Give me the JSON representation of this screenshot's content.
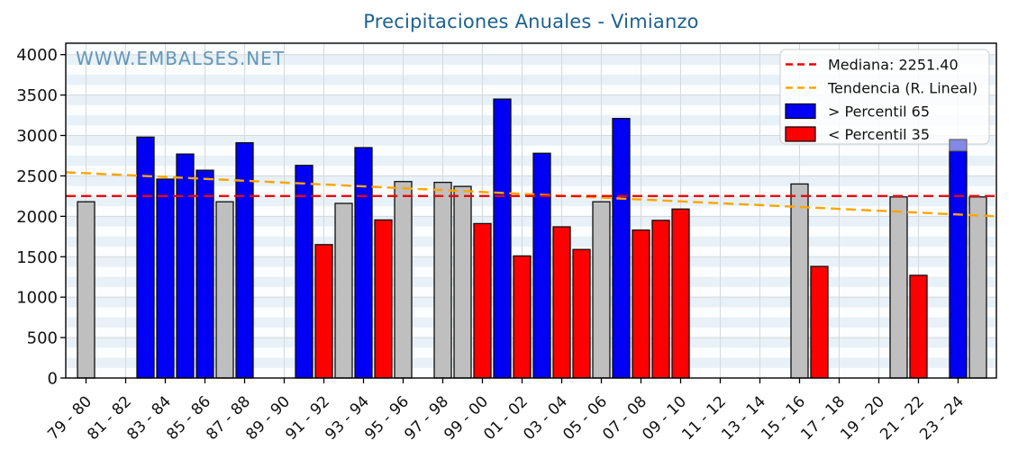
{
  "page": {
    "title": "Precipitaciones Anuales - Vimianzo",
    "watermark": "WWW.EMBALSES.NET"
  },
  "colors": {
    "title": "#1d6191",
    "watermark": "#4f86ac",
    "plot_bg": "#fbfdfe",
    "stripe": "#e8f1f7",
    "grid": "#d3dadd",
    "axis": "#000000",
    "tick_label": "#111111",
    "median_line": "#f00000",
    "trend_line": "#ffa500",
    "bar_above": "#0000f5",
    "bar_below": "#fe0000",
    "bar_normal": "#bfbfbf",
    "bar_partial_cap": "#8289e8",
    "bar_edge": "#0d0d0d",
    "legend_border": "#cccccc"
  },
  "chart_data": {
    "type": "bar",
    "title": "Precipitaciones Anuales - Vimianzo",
    "watermark": "WWW.EMBALSES.NET",
    "xlabel": "",
    "ylabel": "",
    "ylim": [
      0,
      4140
    ],
    "grid": true,
    "legend_position": "upper right",
    "yticks": [
      0,
      500,
      1000,
      1500,
      2000,
      2500,
      3000,
      3500,
      4000
    ],
    "xticks": [
      "79 - 80",
      "81 - 82",
      "83 - 84",
      "85 - 86",
      "87 - 88",
      "89 - 90",
      "91 - 92",
      "93 - 94",
      "95 - 96",
      "97 - 98",
      "99 - 00",
      "01 - 02",
      "03 - 04",
      "05 - 06",
      "07 - 08",
      "09 - 10",
      "11 - 12",
      "13 - 14",
      "15 - 16",
      "17 - 18",
      "19 - 20",
      "21 - 22",
      "23 - 24"
    ],
    "median_value": 2251.4,
    "trend": {
      "left_value": 2545,
      "right_value": 2000
    },
    "legend": [
      {
        "label": "Mediana: 2251.40",
        "swatch": "dashed-line",
        "color": "#f00000"
      },
      {
        "label": "Tendencia (R. Lineal)",
        "swatch": "dashed-line",
        "color": "#ffa500"
      },
      {
        "label": "> Percentil 65",
        "swatch": "rect",
        "color": "#0000f5"
      },
      {
        "label": "< Percentil 35",
        "swatch": "rect",
        "color": "#fe0000"
      }
    ],
    "bars": [
      {
        "season": "79 - 80",
        "value": 2180,
        "category": "normal"
      },
      {
        "season": "82 - 83",
        "value": 2980,
        "category": "above"
      },
      {
        "season": "83 - 84",
        "value": 2460,
        "category": "above"
      },
      {
        "season": "84 - 85",
        "value": 2770,
        "category": "above"
      },
      {
        "season": "85 - 86",
        "value": 2570,
        "category": "above"
      },
      {
        "season": "86 - 87",
        "value": 2180,
        "category": "normal"
      },
      {
        "season": "87 - 88",
        "value": 2910,
        "category": "above"
      },
      {
        "season": "90 - 91",
        "value": 2630,
        "category": "above"
      },
      {
        "season": "91 - 92",
        "value": 1650,
        "category": "below"
      },
      {
        "season": "92 - 93",
        "value": 2160,
        "category": "normal"
      },
      {
        "season": "93 - 94",
        "value": 2850,
        "category": "above"
      },
      {
        "season": "94 - 95",
        "value": 1955,
        "category": "below"
      },
      {
        "season": "95 - 96",
        "value": 2430,
        "category": "normal"
      },
      {
        "season": "97 - 98",
        "value": 2420,
        "category": "normal"
      },
      {
        "season": "98 - 99",
        "value": 2370,
        "category": "normal"
      },
      {
        "season": "99 - 00",
        "value": 1910,
        "category": "below"
      },
      {
        "season": "00 - 01",
        "value": 3450,
        "category": "above"
      },
      {
        "season": "01 - 02",
        "value": 1510,
        "category": "below"
      },
      {
        "season": "02 - 03",
        "value": 2780,
        "category": "above"
      },
      {
        "season": "03 - 04",
        "value": 1870,
        "category": "below"
      },
      {
        "season": "04 - 05",
        "value": 1590,
        "category": "below"
      },
      {
        "season": "05 - 06",
        "value": 2180,
        "category": "normal"
      },
      {
        "season": "06 - 07",
        "value": 3210,
        "category": "above"
      },
      {
        "season": "07 - 08",
        "value": 1830,
        "category": "below"
      },
      {
        "season": "08 - 09",
        "value": 1950,
        "category": "below"
      },
      {
        "season": "09 - 10",
        "value": 2090,
        "category": "below"
      },
      {
        "season": "15 - 16",
        "value": 2400,
        "category": "normal"
      },
      {
        "season": "16 - 17",
        "value": 1380,
        "category": "below"
      },
      {
        "season": "20 - 21",
        "value": 2240,
        "category": "normal"
      },
      {
        "season": "21 - 22",
        "value": 1270,
        "category": "below"
      },
      {
        "season": "23 - 24",
        "value": 2950,
        "category": "above",
        "partial_from": 2810
      },
      {
        "season": "24 - 25",
        "value": 2240,
        "category": "normal"
      }
    ]
  }
}
